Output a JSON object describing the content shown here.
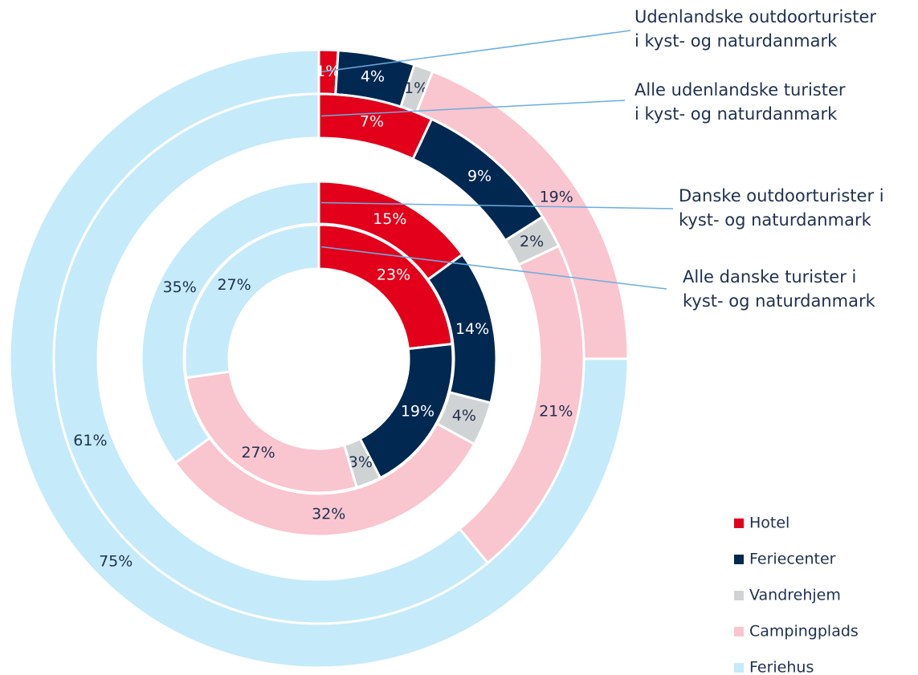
{
  "chart_data": {
    "type": "multi-donut",
    "categories": [
      "Hotel",
      "Feriecenter",
      "Vandrehjem",
      "Campingplads",
      "Feriehus"
    ],
    "colors": [
      "#e2001a",
      "#002850",
      "#d0d3d4",
      "#f9c5cf",
      "#c5eafa"
    ],
    "rings": [
      {
        "name": [
          "Udenlandske outdoorturister",
          "i kyst- og naturdanmark"
        ],
        "values": [
          1,
          4,
          1,
          19,
          75
        ],
        "value_labels": [
          "1%",
          "4%",
          "1%",
          "19%",
          "75%"
        ]
      },
      {
        "name": [
          "Alle udenlandske turister",
          "i kyst- og naturdanmark"
        ],
        "values": [
          7,
          9,
          2,
          21,
          61
        ],
        "value_labels": [
          "7%",
          "9%",
          "2%",
          "21%",
          "61%"
        ]
      },
      {
        "name": [
          "Danske outdoorturister i",
          "kyst- og naturdanmark"
        ],
        "values": [
          15,
          14,
          4,
          32,
          35
        ],
        "value_labels": [
          "15%",
          "14%",
          "4%",
          "32%",
          "35%"
        ]
      },
      {
        "name": [
          "Alle danske turister i",
          "kyst- og naturdanmark"
        ],
        "values": [
          23,
          19,
          3,
          27,
          27
        ],
        "value_labels": [
          "23%",
          "19%",
          "3%",
          "27%",
          "27%"
        ]
      }
    ],
    "legend": "bottom-right"
  }
}
